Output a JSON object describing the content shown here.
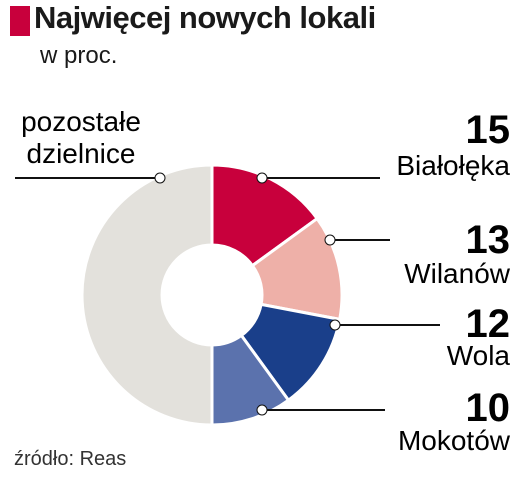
{
  "chart_data": {
    "type": "donut",
    "title": "Najwięcej nowych lokali",
    "subtitle": "w proc.",
    "title_color": "#c8003c",
    "categories": [
      "Białołęka",
      "Wilanów",
      "Wola",
      "Mokotów",
      "pozostałe dzielnice"
    ],
    "values": [
      15,
      13,
      12,
      10,
      50
    ],
    "colors": [
      "#c8003c",
      "#eeb0a8",
      "#1a3f8a",
      "#5b72ad",
      "#e3e1dc"
    ],
    "source": "źródło: Reas"
  }
}
